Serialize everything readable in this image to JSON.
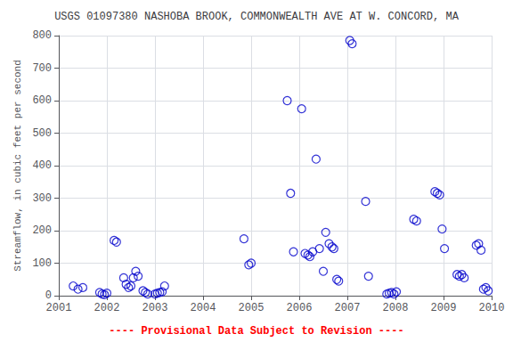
{
  "chart_data": {
    "type": "scatter",
    "title": "USGS 01097380 NASHOBA BROOK, COMMONWEALTH AVE AT W. CONCORD, MA",
    "ylabel": "Streamflow, in cubic feet per second",
    "annotations": [
      {
        "text": "---- Provisional Data Subject to Revision ----",
        "color": "#ff0000"
      }
    ],
    "x": [
      2001.3,
      2001.4,
      2001.5,
      2001.85,
      2001.9,
      2001.95,
      2002.0,
      2002.15,
      2002.2,
      2002.35,
      2002.4,
      2002.45,
      2002.5,
      2002.55,
      2002.6,
      2002.65,
      2002.75,
      2002.8,
      2002.85,
      2003.0,
      2003.05,
      2003.1,
      2003.15,
      2003.2,
      2004.85,
      2004.95,
      2005.0,
      2005.75,
      2005.82,
      2005.88,
      2006.05,
      2006.12,
      2006.18,
      2006.22,
      2006.28,
      2006.35,
      2006.42,
      2006.5,
      2006.55,
      2006.62,
      2006.68,
      2006.72,
      2006.78,
      2006.82,
      2007.05,
      2007.1,
      2007.38,
      2007.44,
      2007.82,
      2007.87,
      2007.92,
      2007.97,
      2008.02,
      2008.38,
      2008.44,
      2008.82,
      2008.87,
      2008.92,
      2008.97,
      2009.02,
      2009.28,
      2009.33,
      2009.38,
      2009.43,
      2009.68,
      2009.73,
      2009.78,
      2009.83,
      2009.88,
      2009.93
    ],
    "values": [
      30,
      20,
      25,
      10,
      5,
      3,
      8,
      170,
      165,
      55,
      35,
      25,
      30,
      55,
      75,
      60,
      15,
      10,
      5,
      5,
      8,
      10,
      12,
      30,
      175,
      95,
      100,
      600,
      315,
      135,
      575,
      130,
      125,
      120,
      135,
      420,
      145,
      75,
      195,
      160,
      150,
      145,
      50,
      45,
      785,
      775,
      290,
      60,
      5,
      8,
      10,
      5,
      12,
      235,
      230,
      320,
      315,
      310,
      205,
      145,
      65,
      60,
      65,
      55,
      155,
      160,
      140,
      20,
      25,
      15
    ],
    "color": "#0000CC",
    "marker": "open_circle",
    "xlim": [
      2001,
      2010
    ],
    "xticks": [
      2001,
      2002,
      2003,
      2004,
      2005,
      2006,
      2007,
      2008,
      2009,
      2010
    ],
    "ylim": [
      0,
      800
    ],
    "yticks": [
      0,
      100,
      200,
      300,
      400,
      500,
      600,
      700,
      800
    ],
    "grid": true
  }
}
